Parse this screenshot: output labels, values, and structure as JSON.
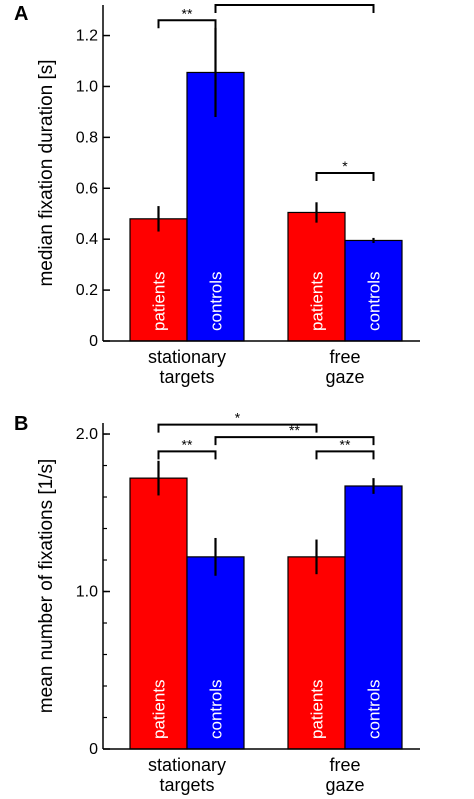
{
  "chart_data": [
    {
      "type": "bar",
      "panel_label": "A",
      "ylabel": "median fixation duration [s]",
      "ylim": [
        0,
        1.32
      ],
      "yticks": [
        0,
        0.2,
        0.4,
        0.6,
        0.8,
        1.0,
        1.2
      ],
      "ytick_labels": [
        "0",
        "0.2",
        "0.4",
        "0.6",
        "0.8",
        "1.0",
        "1.2"
      ],
      "minor_ticks": false,
      "categories": [
        {
          "lines": [
            "stationary",
            "targets"
          ]
        },
        {
          "lines": [
            "free",
            "gaze"
          ]
        }
      ],
      "series": [
        {
          "name": "patients",
          "color": "#ff0000",
          "values": [
            0.48,
            0.505
          ],
          "errors": [
            0.05,
            0.04
          ]
        },
        {
          "name": "controls",
          "color": "#0000ff",
          "values": [
            1.055,
            0.395
          ],
          "errors": [
            0.175,
            0.01
          ]
        }
      ],
      "significance": [
        {
          "from": [
            0,
            0
          ],
          "to": [
            0,
            1
          ],
          "label": "**",
          "level": 1.26
        },
        {
          "from": [
            0,
            1
          ],
          "to": [
            1,
            1
          ],
          "label": "**",
          "level": 1.32
        },
        {
          "from": [
            1,
            0
          ],
          "to": [
            1,
            1
          ],
          "label": "*",
          "level": 0.66
        }
      ]
    },
    {
      "type": "bar",
      "panel_label": "B",
      "ylabel": "mean number of fixations [1/s]",
      "ylim": [
        0,
        2.07
      ],
      "yticks": [
        0,
        1.0,
        2.0
      ],
      "ytick_labels": [
        "0",
        "1.0",
        "2.0"
      ],
      "minor_ticks": true,
      "categories": [
        {
          "lines": [
            "stationary",
            "targets"
          ]
        },
        {
          "lines": [
            "free",
            "gaze"
          ]
        }
      ],
      "series": [
        {
          "name": "patients",
          "color": "#ff0000",
          "values": [
            1.72,
            1.22
          ],
          "errors": [
            0.11,
            0.11
          ]
        },
        {
          "name": "controls",
          "color": "#0000ff",
          "values": [
            1.22,
            1.67
          ],
          "errors": [
            0.12,
            0.05
          ]
        }
      ],
      "significance": [
        {
          "from": [
            0,
            0
          ],
          "to": [
            1,
            0
          ],
          "label": "*",
          "level": 2.06
        },
        {
          "from": [
            0,
            1
          ],
          "to": [
            1,
            1
          ],
          "label": "**",
          "level": 1.98
        },
        {
          "from": [
            0,
            0
          ],
          "to": [
            0,
            1
          ],
          "label": "**",
          "level": 1.89
        },
        {
          "from": [
            1,
            0
          ],
          "to": [
            1,
            1
          ],
          "label": "**",
          "level": 1.89
        }
      ]
    }
  ]
}
